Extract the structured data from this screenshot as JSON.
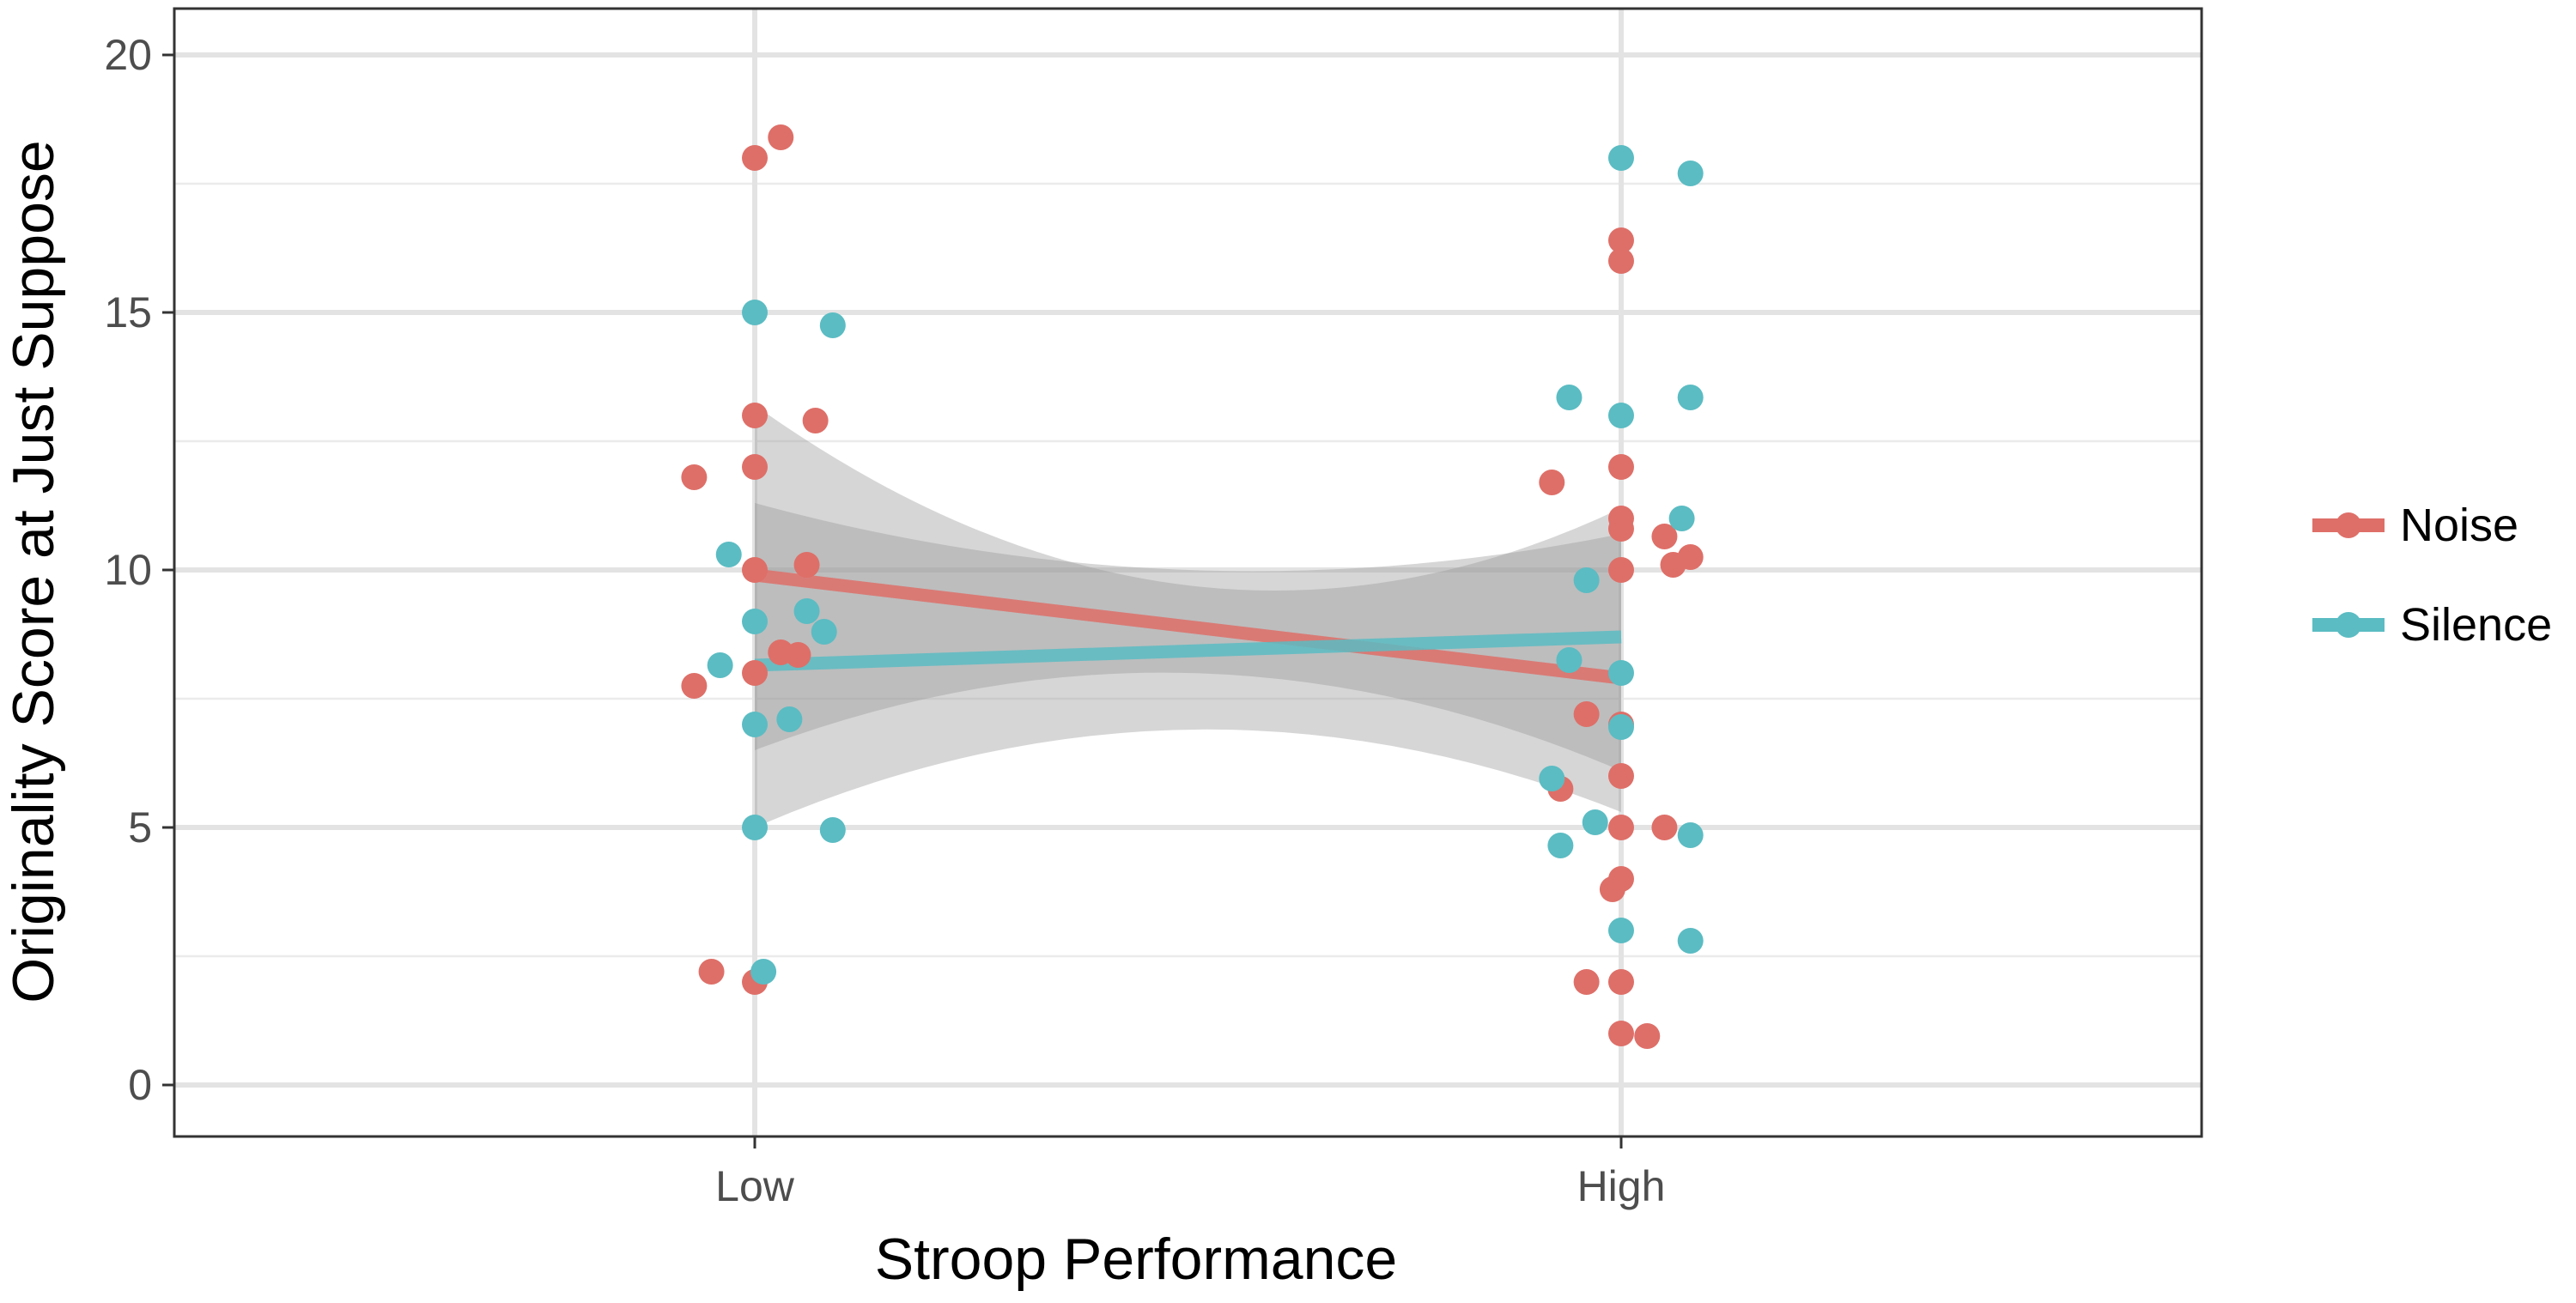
{
  "chart_data": {
    "type": "scatter",
    "title": "",
    "xlabel": "Stroop Performance",
    "ylabel": "Originality Score at Just Suppose",
    "categories": [
      "Low",
      "High"
    ],
    "xlim": [
      0.33,
      2.67
    ],
    "ylim": [
      -1,
      20.9
    ],
    "yticks": [
      0,
      5,
      10,
      15,
      20
    ],
    "ytick_labels": [
      "0",
      "5",
      "10",
      "15",
      "20"
    ],
    "grid": true,
    "legend_position": "right",
    "series": [
      {
        "name": "Noise",
        "color": "#DE6F68",
        "points": [
          {
            "x": 1.0,
            "y": 18.0
          },
          {
            "x": 1.03,
            "y": 18.4
          },
          {
            "x": 1.0,
            "y": 13.0
          },
          {
            "x": 1.07,
            "y": 12.9
          },
          {
            "x": 1.0,
            "y": 12.0
          },
          {
            "x": 0.93,
            "y": 11.8
          },
          {
            "x": 1.0,
            "y": 10.0
          },
          {
            "x": 1.06,
            "y": 10.1
          },
          {
            "x": 1.03,
            "y": 8.4
          },
          {
            "x": 1.05,
            "y": 8.35
          },
          {
            "x": 1.0,
            "y": 8.0
          },
          {
            "x": 0.93,
            "y": 7.75
          },
          {
            "x": 0.95,
            "y": 2.2
          },
          {
            "x": 1.0,
            "y": 2.0
          },
          {
            "x": 2.0,
            "y": 16.4
          },
          {
            "x": 2.0,
            "y": 16.0
          },
          {
            "x": 2.0,
            "y": 12.0
          },
          {
            "x": 1.92,
            "y": 11.7
          },
          {
            "x": 2.0,
            "y": 11.0
          },
          {
            "x": 2.0,
            "y": 10.8
          },
          {
            "x": 2.05,
            "y": 10.65
          },
          {
            "x": 2.08,
            "y": 10.25
          },
          {
            "x": 2.06,
            "y": 10.1
          },
          {
            "x": 2.0,
            "y": 10.0
          },
          {
            "x": 1.96,
            "y": 7.2
          },
          {
            "x": 2.0,
            "y": 7.0
          },
          {
            "x": 2.0,
            "y": 6.0
          },
          {
            "x": 1.93,
            "y": 5.75
          },
          {
            "x": 2.0,
            "y": 5.0
          },
          {
            "x": 2.05,
            "y": 5.0
          },
          {
            "x": 2.0,
            "y": 4.0
          },
          {
            "x": 1.99,
            "y": 3.8
          },
          {
            "x": 1.96,
            "y": 2.0
          },
          {
            "x": 2.0,
            "y": 2.0
          },
          {
            "x": 2.0,
            "y": 1.0
          },
          {
            "x": 2.03,
            "y": 0.95
          }
        ],
        "trend": {
          "x": [
            1,
            2
          ],
          "y": [
            9.9,
            7.9
          ]
        },
        "ci_band": {
          "x": [
            1,
            1.5,
            2
          ],
          "lower": [
            6.5,
            8.0,
            6.1
          ],
          "upper": [
            13.2,
            9.7,
            11.2
          ]
        }
      },
      {
        "name": "Silence",
        "color": "#5BBCC3",
        "points": [
          {
            "x": 1.0,
            "y": 15.0
          },
          {
            "x": 1.09,
            "y": 14.75
          },
          {
            "x": 0.97,
            "y": 10.3
          },
          {
            "x": 1.06,
            "y": 9.2
          },
          {
            "x": 1.0,
            "y": 9.0
          },
          {
            "x": 1.08,
            "y": 8.8
          },
          {
            "x": 0.96,
            "y": 8.15
          },
          {
            "x": 1.04,
            "y": 7.1
          },
          {
            "x": 1.0,
            "y": 7.0
          },
          {
            "x": 1.0,
            "y": 5.0
          },
          {
            "x": 1.09,
            "y": 4.95
          },
          {
            "x": 1.01,
            "y": 2.2
          },
          {
            "x": 2.0,
            "y": 18.0
          },
          {
            "x": 2.08,
            "y": 17.7
          },
          {
            "x": 1.94,
            "y": 13.35
          },
          {
            "x": 2.08,
            "y": 13.35
          },
          {
            "x": 2.0,
            "y": 13.0
          },
          {
            "x": 2.07,
            "y": 11.0
          },
          {
            "x": 1.96,
            "y": 9.8
          },
          {
            "x": 1.94,
            "y": 8.25
          },
          {
            "x": 2.0,
            "y": 8.0
          },
          {
            "x": 2.0,
            "y": 6.95
          },
          {
            "x": 1.92,
            "y": 5.95
          },
          {
            "x": 1.97,
            "y": 5.1
          },
          {
            "x": 2.08,
            "y": 4.85
          },
          {
            "x": 1.93,
            "y": 4.65
          },
          {
            "x": 2.0,
            "y": 3.0
          },
          {
            "x": 2.08,
            "y": 2.8
          }
        ],
        "trend": {
          "x": [
            1,
            2
          ],
          "y": [
            8.15,
            8.7
          ]
        },
        "ci_band": {
          "x": [
            1,
            1.5,
            2
          ],
          "lower": [
            5.0,
            6.9,
            5.3
          ],
          "upper": [
            11.3,
            10.0,
            10.7
          ]
        }
      }
    ]
  }
}
